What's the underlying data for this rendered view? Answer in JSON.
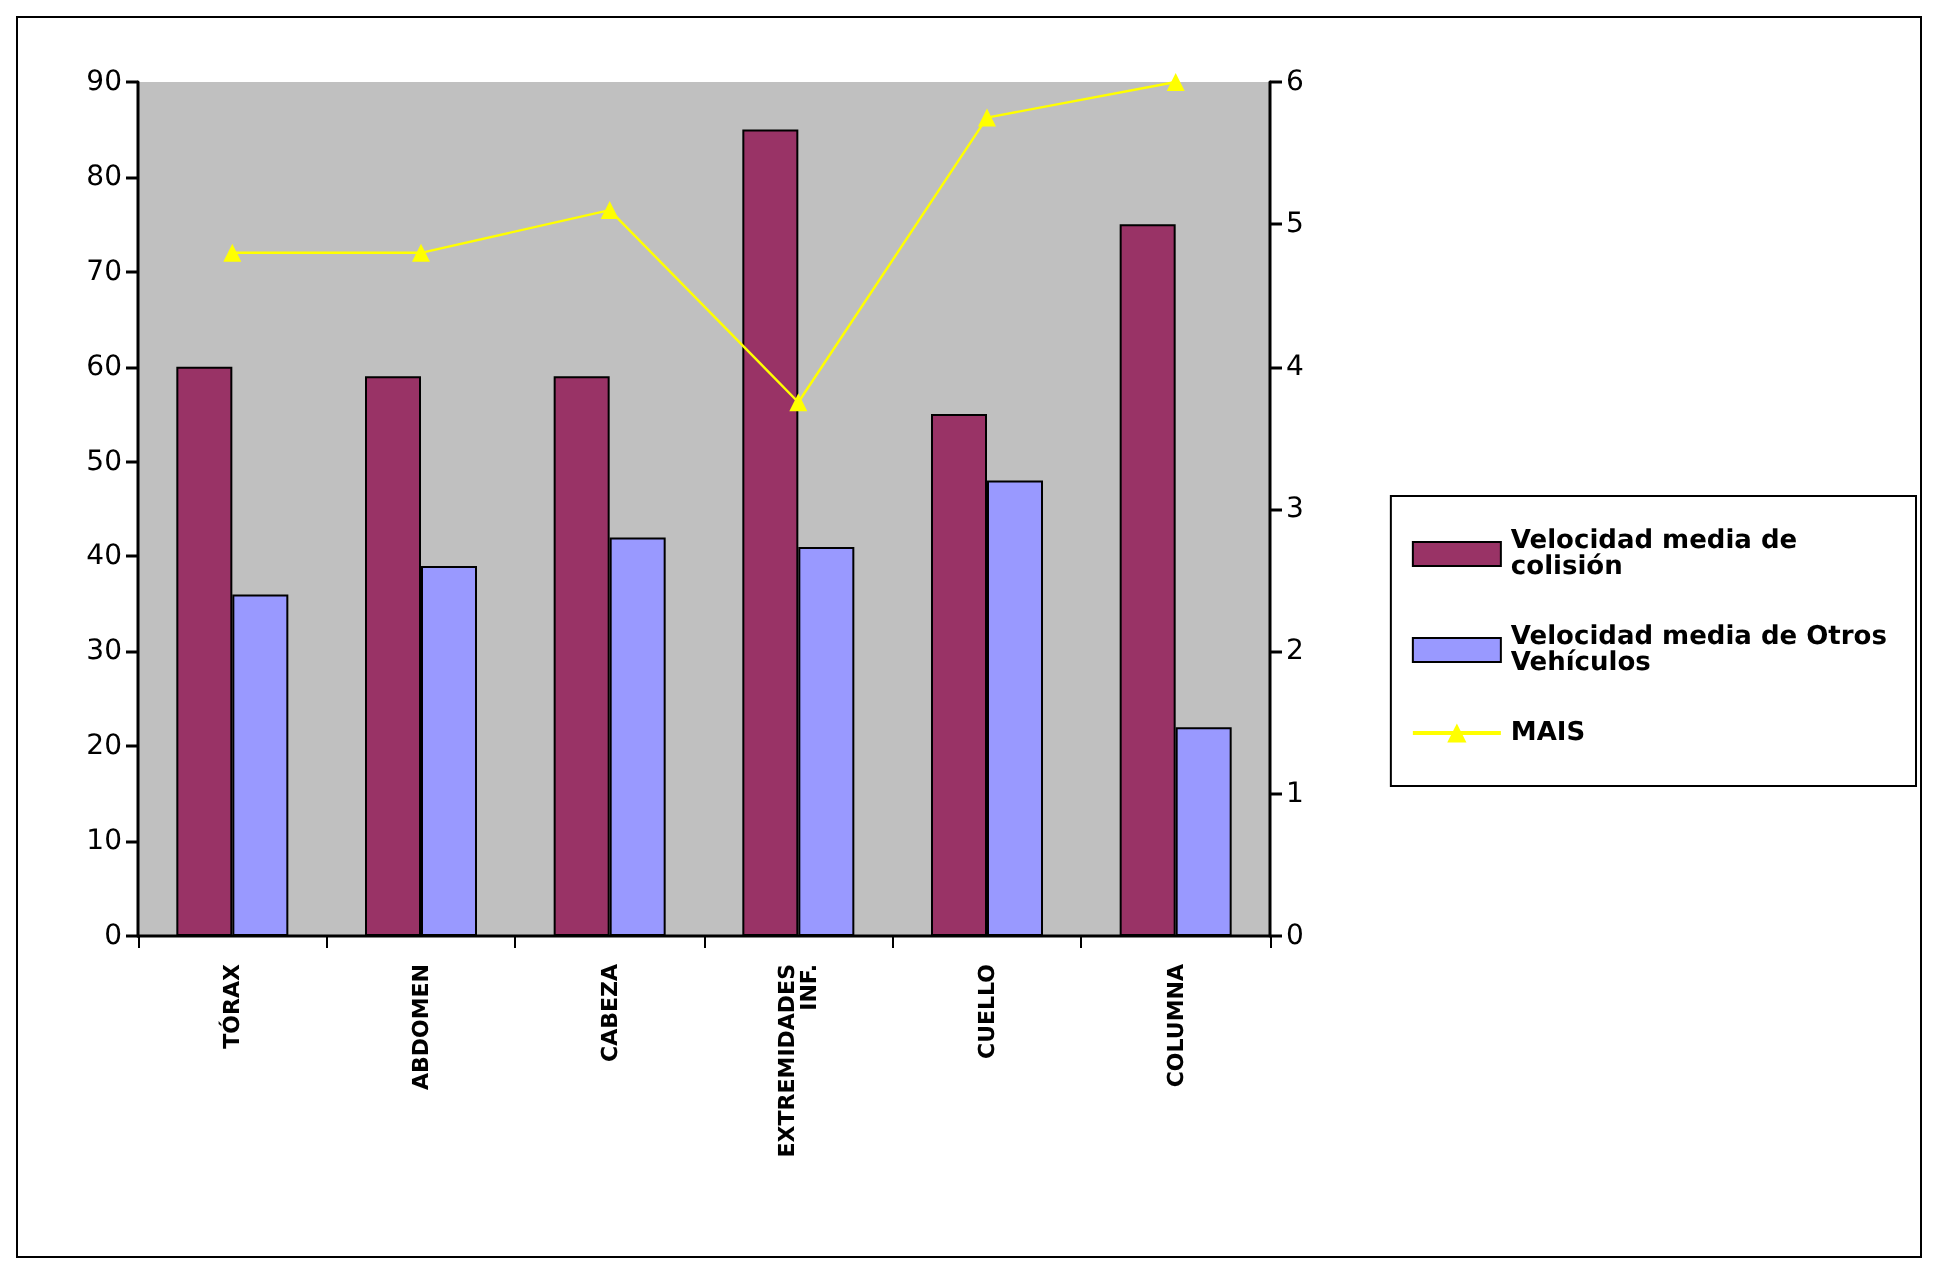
{
  "chart_data": {
    "type": "bar",
    "categories": [
      "TÓRAX",
      "ABDOMEN",
      "CABEZA",
      "EXTREMIDADES INF.",
      "CUELLO",
      "COLUMNA"
    ],
    "series": [
      {
        "name": "Velocidad media de colisión",
        "color": "#993366",
        "values": [
          60,
          59,
          59,
          85,
          55,
          75
        ]
      },
      {
        "name": "Velocidad media de Otros Vehículos",
        "color": "#9999ff",
        "values": [
          36,
          39,
          42,
          41,
          48,
          22
        ]
      },
      {
        "name": "MAIS",
        "type": "line",
        "axis": "y2",
        "color": "#ffff00",
        "marker": "triangle",
        "values": [
          4.8,
          4.8,
          5.1,
          3.75,
          5.75,
          6
        ]
      }
    ],
    "ylim": [
      0,
      90
    ],
    "yticks": [
      0,
      10,
      20,
      30,
      40,
      50,
      60,
      70,
      80,
      90
    ],
    "y2lim": [
      0,
      6
    ],
    "y2ticks": [
      0,
      1,
      2,
      3,
      4,
      5,
      6
    ],
    "grid": false,
    "legend": "right"
  }
}
